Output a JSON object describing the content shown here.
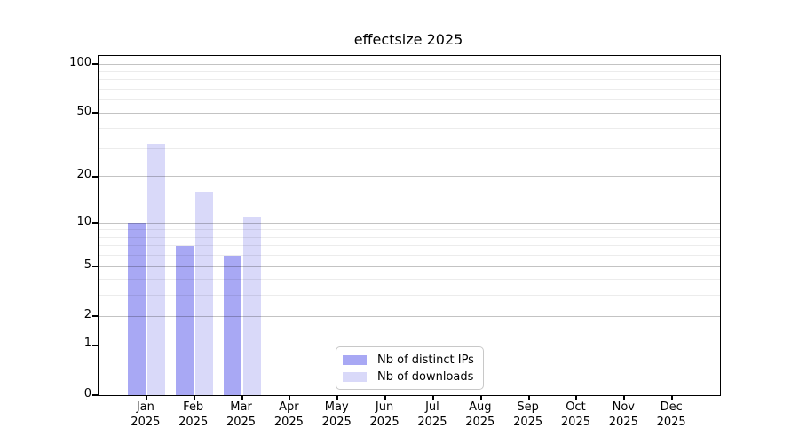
{
  "title": "effectsize 2025",
  "chart_data": {
    "type": "bar",
    "title": "effectsize 2025",
    "x_categories": [
      "Jan",
      "Feb",
      "Mar",
      "Apr",
      "May",
      "Jun",
      "Jul",
      "Aug",
      "Sep",
      "Oct",
      "Nov",
      "Dec"
    ],
    "x_year": "2025",
    "series": [
      {
        "name": "Nb of distinct IPs",
        "color": "#a8a8f4",
        "values": [
          10,
          7,
          6,
          0,
          0,
          0,
          0,
          0,
          0,
          0,
          0,
          0
        ]
      },
      {
        "name": "Nb of downloads",
        "color": "#d9d9f9",
        "values": [
          32,
          16,
          11,
          0,
          0,
          0,
          0,
          0,
          0,
          0,
          0,
          0
        ]
      }
    ],
    "y_scale": "log1p",
    "y_max": 112,
    "ylim": [
      0,
      112
    ],
    "y_ticks": [
      0,
      1,
      2,
      5,
      10,
      20,
      50,
      100
    ],
    "y_tick_labels": [
      "0",
      "1",
      "2",
      "5",
      "10",
      "20",
      "50",
      "100"
    ],
    "y_minor_gridlines": [
      3,
      4,
      6,
      7,
      8,
      9,
      30,
      40,
      60,
      70,
      80,
      90
    ],
    "grid": "on",
    "legend_position": "lower center"
  },
  "legend": {
    "items": [
      {
        "label": "Nb of distinct IPs",
        "color": "#a8a8f4"
      },
      {
        "label": "Nb of downloads",
        "color": "#d9d9f9"
      }
    ]
  },
  "colors": {
    "spine": "#000000",
    "major_grid": "#c3c3c3",
    "minor_grid": "#ebebeb",
    "legend_border": "#c8c8c8",
    "background": "#ffffff"
  }
}
